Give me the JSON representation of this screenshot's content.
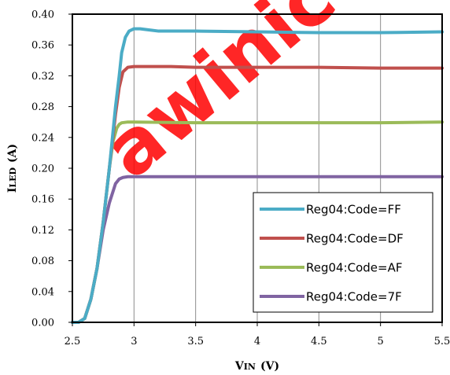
{
  "chart_data": {
    "type": "line",
    "watermark": "awinic",
    "xlabel": {
      "main": "V",
      "sub": "IN",
      "unit": "(V)"
    },
    "ylabel": {
      "main": "I",
      "sub": "LED",
      "unit": "(A)"
    },
    "xlim": [
      2.5,
      5.5
    ],
    "ylim": [
      0,
      0.4
    ],
    "xticks": [
      "2.5",
      "3",
      "3.5",
      "4",
      "4.5",
      "5",
      "5.5"
    ],
    "yticks": [
      "0.00",
      "0.04",
      "0.08",
      "0.12",
      "0.16",
      "0.20",
      "0.24",
      "0.28",
      "0.32",
      "0.36",
      "0.40"
    ],
    "grid": "vertical",
    "legend_position": "bottom-right",
    "series": [
      {
        "name": "Reg04:Code=FF",
        "color": "#4bacc6",
        "x": [
          2.5,
          2.55,
          2.6,
          2.65,
          2.7,
          2.75,
          2.8,
          2.85,
          2.88,
          2.9,
          2.93,
          2.96,
          3.0,
          3.05,
          3.1,
          3.2,
          3.3,
          3.5,
          4.0,
          4.5,
          5.0,
          5.5
        ],
        "y": [
          0.0,
          0.0,
          0.005,
          0.03,
          0.07,
          0.13,
          0.2,
          0.28,
          0.32,
          0.35,
          0.37,
          0.378,
          0.381,
          0.381,
          0.38,
          0.378,
          0.378,
          0.378,
          0.377,
          0.376,
          0.376,
          0.377
        ]
      },
      {
        "name": "Reg04:Code=DF",
        "color": "#c0504d",
        "x": [
          2.5,
          2.55,
          2.6,
          2.65,
          2.7,
          2.75,
          2.8,
          2.85,
          2.88,
          2.91,
          2.95,
          3.0,
          3.1,
          3.3,
          3.5,
          4.0,
          4.5,
          5.0,
          5.5
        ],
        "y": [
          0.0,
          0.0,
          0.005,
          0.03,
          0.07,
          0.13,
          0.2,
          0.27,
          0.305,
          0.325,
          0.331,
          0.332,
          0.332,
          0.332,
          0.331,
          0.331,
          0.331,
          0.33,
          0.33
        ]
      },
      {
        "name": "Reg04:Code=AF",
        "color": "#9bbb59",
        "x": [
          2.5,
          2.55,
          2.6,
          2.65,
          2.7,
          2.75,
          2.8,
          2.83,
          2.86,
          2.88,
          2.9,
          2.95,
          3.0,
          3.5,
          4.0,
          4.5,
          5.0,
          5.5
        ],
        "y": [
          0.0,
          0.0,
          0.005,
          0.03,
          0.07,
          0.13,
          0.2,
          0.235,
          0.252,
          0.257,
          0.259,
          0.26,
          0.26,
          0.259,
          0.259,
          0.259,
          0.259,
          0.26
        ]
      },
      {
        "name": "Reg04:Code=7F",
        "color": "#8064a2",
        "x": [
          2.5,
          2.55,
          2.6,
          2.65,
          2.7,
          2.75,
          2.8,
          2.85,
          2.88,
          2.91,
          2.95,
          3.0,
          3.5,
          4.0,
          4.5,
          5.0,
          5.5
        ],
        "y": [
          0.0,
          0.0,
          0.005,
          0.03,
          0.07,
          0.12,
          0.155,
          0.18,
          0.186,
          0.188,
          0.189,
          0.189,
          0.189,
          0.189,
          0.189,
          0.189,
          0.189
        ]
      }
    ]
  }
}
